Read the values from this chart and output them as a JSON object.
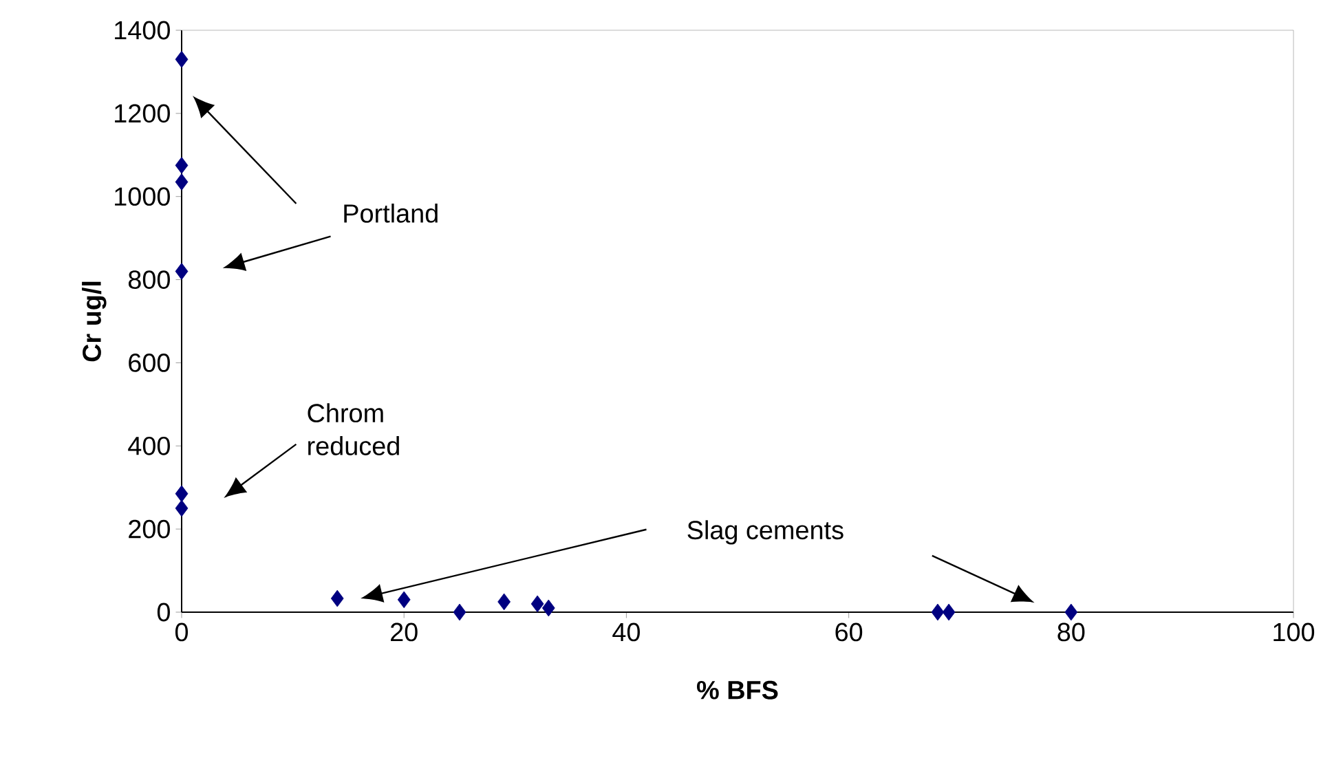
{
  "chart_data": {
    "type": "scatter",
    "xlabel": "% BFS",
    "ylabel": "Cr ug/l",
    "x": [
      0,
      0,
      0,
      0,
      0,
      0,
      14,
      20,
      25,
      29,
      32,
      33,
      68,
      69,
      80
    ],
    "values": [
      1330,
      1075,
      1035,
      820,
      285,
      250,
      33,
      30,
      0,
      25,
      20,
      10,
      0,
      0,
      0
    ],
    "color": "#000080",
    "marker": "diamond",
    "xlim": [
      0,
      100
    ],
    "xticks": [
      0,
      20,
      40,
      60,
      80,
      100
    ],
    "ylim": [
      0,
      1400
    ],
    "yticks": [
      0,
      200,
      400,
      600,
      800,
      1000,
      1200,
      1400
    ],
    "annotations": [
      "Portland",
      "Chrom reduced",
      "Slag cements"
    ]
  }
}
